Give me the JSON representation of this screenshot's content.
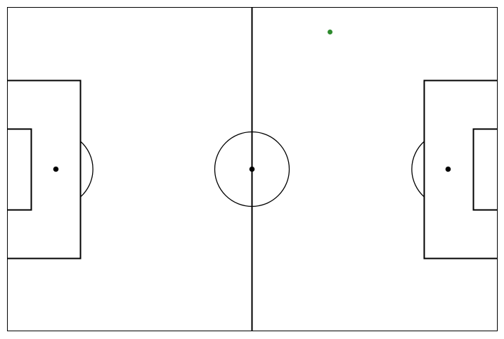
{
  "pitch": {
    "line_color": "#000000",
    "background_color": "#ffffff"
  },
  "markers": [
    {
      "name": "ball-marker",
      "color": "#2e8b2e"
    }
  ]
}
